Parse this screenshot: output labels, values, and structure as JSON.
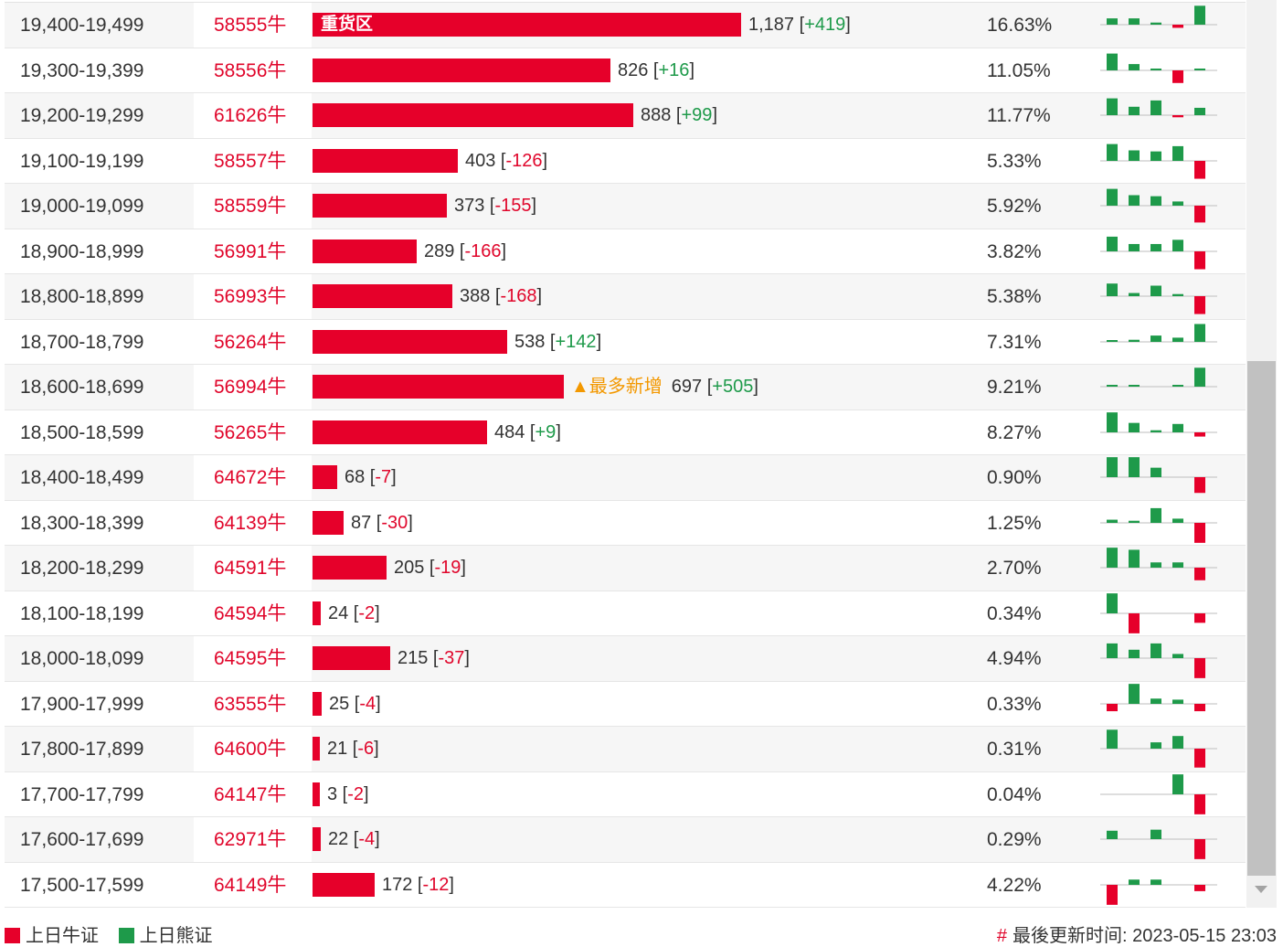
{
  "colors": {
    "bull": "#e6002a",
    "bear": "#1e9a4a",
    "highlight": "#f39800"
  },
  "rows": [
    {
      "range": "19,400-19,499",
      "code": "58555牛",
      "tag": "重货区",
      "qty": 1187,
      "qty_label": "1,187",
      "chg": "+419",
      "pct": "16.63%",
      "bars": [
        0.3,
        0.3,
        0.1,
        -0.15,
        0.9
      ]
    },
    {
      "range": "19,300-19,399",
      "code": "58556牛",
      "qty": 826,
      "qty_label": "826",
      "chg": "+16",
      "pct": "11.05%",
      "bars": [
        0.8,
        0.3,
        0.05,
        -0.6,
        0.05
      ]
    },
    {
      "range": "19,200-19,299",
      "code": "61626牛",
      "qty": 888,
      "qty_label": "888",
      "chg": "+99",
      "pct": "11.77%",
      "bars": [
        0.8,
        0.4,
        0.7,
        -0.1,
        0.35
      ]
    },
    {
      "range": "19,100-19,199",
      "code": "58557牛",
      "qty": 403,
      "qty_label": "403",
      "chg": "-126",
      "pct": "5.33%",
      "bars": [
        0.8,
        0.5,
        0.45,
        0.7,
        -0.85
      ]
    },
    {
      "range": "19,000-19,099",
      "code": "58559牛",
      "qty": 373,
      "qty_label": "373",
      "chg": "-155",
      "pct": "5.92%",
      "bars": [
        0.8,
        0.5,
        0.45,
        0.2,
        -0.8
      ]
    },
    {
      "range": "18,900-18,999",
      "code": "56991牛",
      "qty": 289,
      "qty_label": "289",
      "chg": "-166",
      "pct": "3.82%",
      "bars": [
        0.7,
        0.35,
        0.35,
        0.55,
        -0.85
      ]
    },
    {
      "range": "18,800-18,899",
      "code": "56993牛",
      "qty": 388,
      "qty_label": "388",
      "chg": "-168",
      "pct": "5.38%",
      "bars": [
        0.6,
        0.15,
        0.5,
        0.1,
        -0.85
      ]
    },
    {
      "range": "18,700-18,799",
      "code": "56264牛",
      "qty": 538,
      "qty_label": "538",
      "chg": "+142",
      "pct": "7.31%",
      "bars": [
        0.05,
        0.1,
        0.3,
        0.2,
        0.85
      ]
    },
    {
      "range": "18,600-18,699",
      "code": "56994牛",
      "qty": 697,
      "qty_label": "697",
      "chg": "+505",
      "pct": "9.21%",
      "flag": "▲最多新增",
      "bars": [
        0.04,
        0.04,
        0,
        0.04,
        0.9
      ]
    },
    {
      "range": "18,500-18,599",
      "code": "56265牛",
      "qty": 484,
      "qty_label": "484",
      "chg": "+9",
      "pct": "8.27%",
      "bars": [
        0.95,
        0.45,
        0.1,
        0.4,
        -0.2
      ]
    },
    {
      "range": "18,400-18,499",
      "code": "64672牛",
      "qty": 68,
      "qty_label": "68",
      "chg": "-7",
      "pct": "0.90%",
      "bars": [
        0.95,
        0.95,
        0.45,
        0,
        -0.75
      ]
    },
    {
      "range": "18,300-18,399",
      "code": "64139牛",
      "qty": 87,
      "qty_label": "87",
      "chg": "-30",
      "pct": "1.25%",
      "bars": [
        0.15,
        0.1,
        0.7,
        0.2,
        -0.95
      ]
    },
    {
      "range": "18,200-18,299",
      "code": "64591牛",
      "qty": 205,
      "qty_label": "205",
      "chg": "-19",
      "pct": "2.70%",
      "bars": [
        0.95,
        0.85,
        0.25,
        0.25,
        -0.6
      ]
    },
    {
      "range": "18,100-18,199",
      "code": "64594牛",
      "qty": 24,
      "qty_label": "24",
      "chg": "-2",
      "pct": "0.34%",
      "bars": [
        0.95,
        -0.95,
        0,
        0,
        -0.45
      ]
    },
    {
      "range": "18,000-18,099",
      "code": "64595牛",
      "qty": 215,
      "qty_label": "215",
      "chg": "-37",
      "pct": "4.94%",
      "bars": [
        0.7,
        0.4,
        0.7,
        0.2,
        -0.95
      ]
    },
    {
      "range": "17,900-17,999",
      "code": "63555牛",
      "qty": 25,
      "qty_label": "25",
      "chg": "-4",
      "pct": "0.33%",
      "bars": [
        -0.35,
        0.95,
        0.25,
        0.2,
        -0.35
      ]
    },
    {
      "range": "17,800-17,899",
      "code": "64600牛",
      "qty": 21,
      "qty_label": "21",
      "chg": "-6",
      "pct": "0.31%",
      "bars": [
        0.9,
        0,
        0.3,
        0.6,
        -0.9
      ]
    },
    {
      "range": "17,700-17,799",
      "code": "64147牛",
      "qty": 3,
      "qty_label": "3",
      "chg": "-2",
      "pct": "0.04%",
      "bars": [
        0,
        0,
        0,
        0.95,
        -0.95
      ]
    },
    {
      "range": "17,600-17,699",
      "code": "62971牛",
      "qty": 22,
      "qty_label": "22",
      "chg": "-4",
      "pct": "0.29%",
      "bars": [
        0.4,
        0,
        0.45,
        0,
        -0.95
      ]
    },
    {
      "range": "17,500-17,599",
      "code": "64149牛",
      "qty": 172,
      "qty_label": "172",
      "chg": "-12",
      "pct": "4.22%",
      "bars": [
        -0.95,
        0.25,
        0.25,
        0,
        -0.3
      ]
    }
  ],
  "legend": {
    "bull_label": "上日牛证",
    "bear_label": "上日熊证"
  },
  "footer": {
    "hash": "#",
    "updated": "最後更新时间: 2023-05-15 23:03"
  }
}
